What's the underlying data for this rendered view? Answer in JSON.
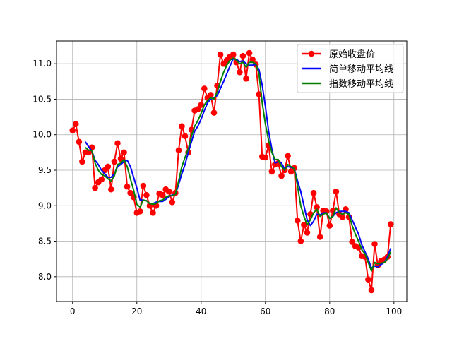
{
  "chart_data": {
    "type": "line",
    "title": "",
    "xlabel": "",
    "ylabel": "",
    "xlim": [
      -5,
      104
    ],
    "ylim": [
      7.65,
      11.32
    ],
    "x_ticks": [
      0,
      20,
      40,
      60,
      80,
      100
    ],
    "x_tick_labels": [
      "0",
      "20",
      "40",
      "60",
      "80",
      "100"
    ],
    "y_ticks": [
      8.0,
      8.5,
      9.0,
      9.5,
      10.0,
      10.5,
      11.0
    ],
    "y_tick_labels": [
      "8.0",
      "8.5",
      "9.0",
      "9.5",
      "10.0",
      "10.5",
      "11.0"
    ],
    "grid": true,
    "legend_position": "top-right",
    "x": [
      0,
      1,
      2,
      3,
      4,
      5,
      6,
      7,
      8,
      9,
      10,
      11,
      12,
      13,
      14,
      15,
      16,
      17,
      18,
      19,
      20,
      21,
      22,
      23,
      24,
      25,
      26,
      27,
      28,
      29,
      30,
      31,
      32,
      33,
      34,
      35,
      36,
      37,
      38,
      39,
      40,
      41,
      42,
      43,
      44,
      45,
      46,
      47,
      48,
      49,
      50,
      51,
      52,
      53,
      54,
      55,
      56,
      57,
      58,
      59,
      60,
      61,
      62,
      63,
      64,
      65,
      66,
      67,
      68,
      69,
      70,
      71,
      72,
      73,
      74,
      75,
      76,
      77,
      78,
      79,
      80,
      81,
      82,
      83,
      84,
      85,
      86,
      87,
      88,
      89,
      90,
      91,
      92,
      93,
      94,
      95,
      96,
      97,
      98,
      99
    ],
    "series": [
      {
        "name": "原始收盘价",
        "color": "#ff0000",
        "marker": true,
        "values": [
          10.06,
          10.15,
          9.9,
          9.62,
          9.75,
          9.75,
          9.82,
          9.25,
          9.33,
          9.37,
          9.5,
          9.55,
          9.23,
          9.62,
          9.88,
          9.66,
          9.75,
          9.27,
          9.18,
          9.12,
          8.9,
          8.92,
          9.28,
          9.15,
          9.0,
          8.9,
          9.0,
          9.17,
          9.15,
          9.23,
          9.2,
          9.05,
          9.18,
          9.78,
          10.12,
          9.98,
          9.75,
          10.07,
          10.34,
          10.36,
          10.42,
          10.65,
          10.52,
          10.56,
          10.31,
          10.69,
          11.13,
          11.0,
          11.05,
          11.1,
          11.13,
          11.02,
          10.88,
          11.11,
          10.79,
          11.15,
          11.06,
          10.99,
          10.57,
          9.69,
          9.68,
          9.85,
          9.48,
          9.58,
          9.6,
          9.42,
          9.5,
          9.7,
          9.48,
          9.53,
          8.79,
          8.5,
          8.73,
          8.62,
          8.88,
          9.18,
          8.98,
          8.56,
          8.93,
          8.92,
          8.72,
          8.93,
          9.2,
          8.88,
          8.84,
          8.95,
          8.84,
          8.49,
          8.43,
          8.41,
          8.29,
          8.28,
          7.96,
          7.81,
          8.46,
          8.16,
          8.22,
          8.24,
          8.28,
          8.74
        ]
      },
      {
        "name": "简单移动平均线",
        "color": "#0000ff",
        "marker": false,
        "values": [
          null,
          null,
          null,
          null,
          9.9,
          9.83,
          9.77,
          9.64,
          9.58,
          9.5,
          9.45,
          9.4,
          9.4,
          9.45,
          9.55,
          9.58,
          9.62,
          9.64,
          9.55,
          9.4,
          9.25,
          9.08,
          9.08,
          9.07,
          9.03,
          9.03,
          9.05,
          9.06,
          9.06,
          9.09,
          9.13,
          9.15,
          9.16,
          9.3,
          9.45,
          9.58,
          9.75,
          9.9,
          10.05,
          10.12,
          10.22,
          10.34,
          10.45,
          10.5,
          10.52,
          10.55,
          10.65,
          10.75,
          10.86,
          10.97,
          11.07,
          11.06,
          11.03,
          11.04,
          11.0,
          10.98,
          10.98,
          10.99,
          10.92,
          10.7,
          10.4,
          10.05,
          9.8,
          9.6,
          9.62,
          9.6,
          9.52,
          9.55,
          9.54,
          9.52,
          9.35,
          9.2,
          9.0,
          8.8,
          8.72,
          8.78,
          8.88,
          8.87,
          8.9,
          8.9,
          8.82,
          8.85,
          8.9,
          8.92,
          8.92,
          8.92,
          8.9,
          8.8,
          8.7,
          8.6,
          8.45,
          8.35,
          8.25,
          8.12,
          8.15,
          8.14,
          8.17,
          8.2,
          8.28,
          8.4
        ]
      },
      {
        "name": "指数移动平均线",
        "color": "#008000",
        "marker": false,
        "values": [
          null,
          null,
          null,
          null,
          9.82,
          9.78,
          9.78,
          9.6,
          9.5,
          9.44,
          9.42,
          9.38,
          9.35,
          9.42,
          9.58,
          9.6,
          9.65,
          9.55,
          9.38,
          9.22,
          9.02,
          8.98,
          9.08,
          9.07,
          9.03,
          9.02,
          9.03,
          9.07,
          9.08,
          9.12,
          9.14,
          9.14,
          9.16,
          9.35,
          9.55,
          9.68,
          9.8,
          9.98,
          10.12,
          10.2,
          10.3,
          10.42,
          10.48,
          10.52,
          10.5,
          10.6,
          10.75,
          10.88,
          10.98,
          11.05,
          11.08,
          11.05,
          11.0,
          11.02,
          10.95,
          11.02,
          11.02,
          11.0,
          10.86,
          10.45,
          10.15,
          9.92,
          9.75,
          9.65,
          9.65,
          9.55,
          9.5,
          9.58,
          9.55,
          9.52,
          9.28,
          9.0,
          8.85,
          8.73,
          8.8,
          8.9,
          8.95,
          8.85,
          8.88,
          8.9,
          8.82,
          8.85,
          8.97,
          8.9,
          8.88,
          8.9,
          8.88,
          8.72,
          8.6,
          8.5,
          8.38,
          8.32,
          8.2,
          8.08,
          8.2,
          8.18,
          8.19,
          8.2,
          8.25,
          8.35
        ]
      }
    ]
  }
}
